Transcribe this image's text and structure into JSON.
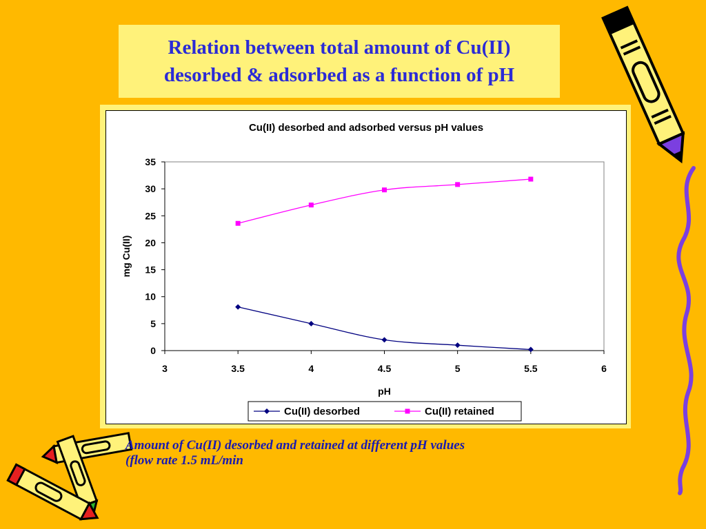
{
  "slide": {
    "title_line1": "Relation between total amount of Cu(II)",
    "title_line2": "desorbed & adsorbed as a function of pH",
    "caption_line1": "Amount of Cu(II) desorbed and retained at different pH values",
    "caption_line2": "(flow rate 1.5 mL/min",
    "colors": {
      "background": "#FFB900",
      "title_box": "#FFF27A",
      "title_text": "#2B2BD6",
      "caption_text": "#1A1AB0"
    },
    "decorations": [
      "pencil-icon",
      "crayons-icon",
      "squiggle-line-icon"
    ]
  },
  "chart_data": {
    "type": "line",
    "title": "Cu(II) desorbed and adsorbed versus pH values",
    "xlabel": "pH",
    "ylabel": "mg Cu(II)",
    "xlim": [
      3,
      6
    ],
    "ylim": [
      0,
      35
    ],
    "x_ticks": [
      "3",
      "3.5",
      "4",
      "4.5",
      "5",
      "5.5",
      "6"
    ],
    "y_ticks": [
      "0",
      "5",
      "10",
      "15",
      "20",
      "25",
      "30",
      "35"
    ],
    "grid": false,
    "legend_position": "bottom",
    "x": [
      3.5,
      4,
      4.5,
      5,
      5.5
    ],
    "series": [
      {
        "name": "Cu(II) desorbed",
        "values": [
          8.1,
          5.0,
          2.0,
          1.0,
          0.2
        ],
        "color": "#000080",
        "marker": "diamond"
      },
      {
        "name": "Cu(II) retained",
        "values": [
          23.6,
          27.0,
          29.8,
          30.8,
          31.8
        ],
        "color": "#FF00FF",
        "marker": "square"
      }
    ]
  }
}
